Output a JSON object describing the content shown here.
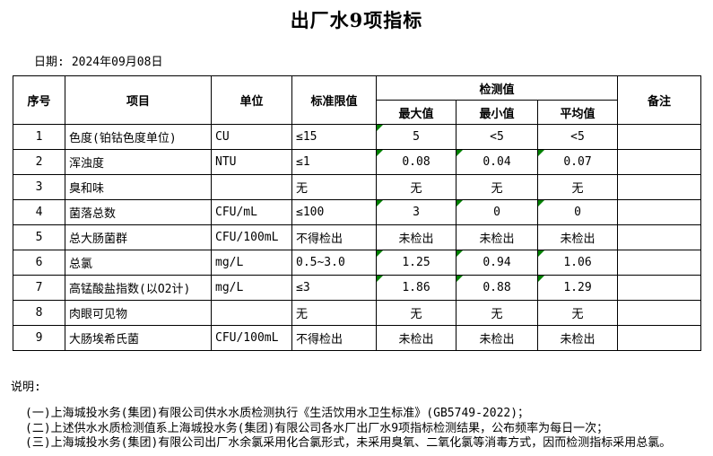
{
  "page": {
    "title": "出厂水9项指标",
    "date_label": "日期:",
    "date_value": "2024年09月08日"
  },
  "colors": {
    "flag_green": "#008000",
    "border": "#000000",
    "background": "#ffffff"
  },
  "table": {
    "headers": {
      "no": "序号",
      "item": "项目",
      "unit": "单位",
      "limit": "标准限值",
      "detection": "检测值",
      "max": "最大值",
      "min": "最小值",
      "avg": "平均值",
      "remark": "备注"
    },
    "rows": [
      {
        "no": "1",
        "item": "色度(铂钴色度单位)",
        "unit": "CU",
        "limit": "≤15",
        "max": "5",
        "min": "<5",
        "avg": "<5",
        "remark": "",
        "flags": {
          "max": true,
          "min": false,
          "avg": false
        }
      },
      {
        "no": "2",
        "item": "浑浊度",
        "unit": "NTU",
        "limit": "≤1",
        "max": "0.08",
        "min": "0.04",
        "avg": "0.07",
        "remark": "",
        "flags": {
          "max": true,
          "min": true,
          "avg": true
        }
      },
      {
        "no": "3",
        "item": "臭和味",
        "unit": "",
        "limit": "无",
        "max": "无",
        "min": "无",
        "avg": "无",
        "remark": "",
        "flags": {
          "max": false,
          "min": false,
          "avg": false
        }
      },
      {
        "no": "4",
        "item": "菌落总数",
        "unit": "CFU/mL",
        "limit": "≤100",
        "max": "3",
        "min": "0",
        "avg": "0",
        "remark": "",
        "flags": {
          "max": true,
          "min": true,
          "avg": true
        }
      },
      {
        "no": "5",
        "item": "总大肠菌群",
        "unit": "CFU/100mL",
        "limit": "不得检出",
        "max": "未检出",
        "min": "未检出",
        "avg": "未检出",
        "remark": "",
        "flags": {
          "max": false,
          "min": false,
          "avg": false
        }
      },
      {
        "no": "6",
        "item": "总氯",
        "unit": "mg/L",
        "limit": "0.5~3.0",
        "max": "1.25",
        "min": "0.94",
        "avg": "1.06",
        "remark": "",
        "flags": {
          "max": true,
          "min": true,
          "avg": true
        }
      },
      {
        "no": "7",
        "item": "高锰酸盐指数(以O2计)",
        "unit": "mg/L",
        "limit": "≤3",
        "max": "1.86",
        "min": "0.88",
        "avg": "1.29",
        "remark": "",
        "flags": {
          "max": true,
          "min": true,
          "avg": true
        }
      },
      {
        "no": "8",
        "item": "肉眼可见物",
        "unit": "",
        "limit": "无",
        "max": "无",
        "min": "无",
        "avg": "无",
        "remark": "",
        "flags": {
          "max": false,
          "min": false,
          "avg": false
        }
      },
      {
        "no": "9",
        "item": "大肠埃希氏菌",
        "unit": "CFU/100mL",
        "limit": "不得检出",
        "max": "未检出",
        "min": "未检出",
        "avg": "未检出",
        "remark": "",
        "flags": {
          "max": false,
          "min": false,
          "avg": false
        }
      }
    ]
  },
  "notes": {
    "label": "说明:",
    "items": [
      "(一)上海城投水务(集团)有限公司供水水质检测执行《生活饮用水卫生标准》(GB5749-2022)；",
      "(二)上述供水水质检测值系上海城投水务(集团)有限公司各水厂出厂水9项指标检测结果，公布频率为每日一次；",
      "(三)上海城投水务(集团)有限公司出厂水余氯采用化合氯形式，未采用臭氧、二氧化氯等消毒方式，因而检测指标采用总氯。"
    ]
  }
}
